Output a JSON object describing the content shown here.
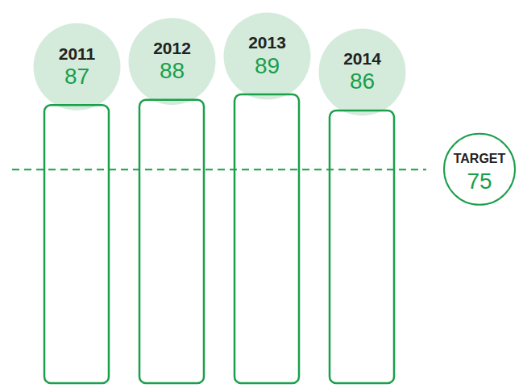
{
  "chart_data": {
    "type": "bar",
    "categories": [
      "2011",
      "2012",
      "2013",
      "2014"
    ],
    "values": [
      87,
      88,
      89,
      86
    ],
    "color": "#1a9f4b",
    "ylim": [
      35,
      105
    ],
    "tick_labels": false,
    "data_labels": true,
    "target": {
      "label": "TARGET",
      "value": 75
    }
  }
}
